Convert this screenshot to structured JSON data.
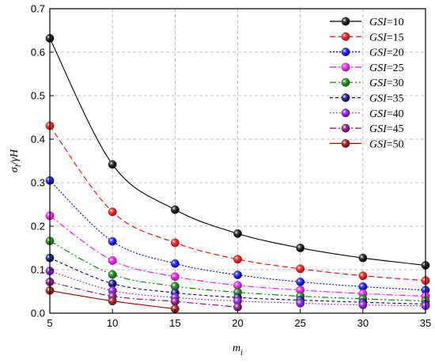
{
  "chart_data": {
    "type": "line",
    "title": "",
    "xlabel": "m",
    "xlabel_sub": "i",
    "ylabel": "σ",
    "ylabel_sub": "l",
    "ylabel_suffix": "/γH",
    "xlim": [
      5,
      35
    ],
    "ylim": [
      0.0,
      0.7
    ],
    "xticks": [
      5,
      10,
      15,
      20,
      25,
      30,
      35
    ],
    "yticks": [
      0.0,
      0.1,
      0.2,
      0.3,
      0.4,
      0.5,
      0.6,
      0.7
    ],
    "ytick_labels": [
      "0.0",
      "0.1",
      "0.2",
      "0.3",
      "0.4",
      "0.5",
      "0.6",
      "0.7"
    ],
    "grid": true,
    "legend_position": "top-right",
    "series": [
      {
        "name_prefix": "GSI",
        "name_suffix": "=10",
        "color": "#000000",
        "dash": "solid",
        "x": [
          5,
          10,
          15,
          20,
          25,
          30,
          35
        ],
        "values": [
          0.632,
          0.342,
          0.238,
          0.183,
          0.15,
          0.127,
          0.11
        ]
      },
      {
        "name_prefix": "GSI",
        "name_suffix": "=15",
        "color": "#ff0000",
        "dash": "dashed",
        "x": [
          5,
          10,
          15,
          20,
          25,
          30,
          35
        ],
        "values": [
          0.431,
          0.233,
          0.162,
          0.124,
          0.102,
          0.086,
          0.075
        ]
      },
      {
        "name_prefix": "GSI",
        "name_suffix": "=20",
        "color": "#0000ff",
        "dash": "dotted",
        "x": [
          5,
          10,
          15,
          20,
          25,
          30,
          35
        ],
        "values": [
          0.305,
          0.165,
          0.114,
          0.088,
          0.072,
          0.061,
          0.053
        ]
      },
      {
        "name_prefix": "GSI",
        "name_suffix": "=25",
        "color": "#ff00ff",
        "dash": "dashdot",
        "x": [
          5,
          10,
          15,
          20,
          25,
          30,
          35
        ],
        "values": [
          0.224,
          0.121,
          0.084,
          0.064,
          0.053,
          0.045,
          0.039
        ]
      },
      {
        "name_prefix": "GSI",
        "name_suffix": "=30",
        "color": "#008000",
        "dash": "dashdotdot",
        "x": [
          5,
          10,
          15,
          20,
          25,
          30,
          35
        ],
        "values": [
          0.166,
          0.089,
          0.062,
          0.048,
          0.039,
          0.033,
          0.028
        ]
      },
      {
        "name_prefix": "GSI",
        "name_suffix": "=35",
        "color": "#000080",
        "dash": "shortdash",
        "x": [
          5,
          10,
          15,
          20,
          25,
          30,
          35
        ],
        "values": [
          0.127,
          0.068,
          0.047,
          0.036,
          0.03,
          0.025,
          0.021
        ]
      },
      {
        "name_prefix": "GSI",
        "name_suffix": "=40",
        "color": "#8000ff",
        "dash": "shortdot",
        "x": [
          5,
          10,
          15,
          20,
          25,
          30,
          35
        ],
        "values": [
          0.097,
          0.052,
          0.036,
          0.028,
          0.023,
          0.019,
          0.017
        ]
      },
      {
        "name_prefix": "GSI",
        "name_suffix": "=45",
        "color": "#800080",
        "dash": "dashdot",
        "x": [
          5,
          10,
          15,
          20
        ],
        "values": [
          0.072,
          0.039,
          0.027,
          0.014
        ]
      },
      {
        "name_prefix": "GSI",
        "name_suffix": "=50",
        "color": "#a00000",
        "dash": "solid",
        "x": [
          5,
          10,
          15
        ],
        "values": [
          0.052,
          0.028,
          0.01
        ]
      }
    ]
  }
}
